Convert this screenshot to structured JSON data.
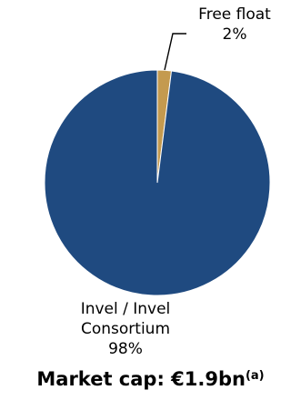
{
  "chart_data": {
    "type": "pie",
    "slices": [
      {
        "label_lines": [
          "Free float"
        ],
        "value": 2,
        "value_label": "2%",
        "color": "#c49a4f"
      },
      {
        "label_lines": [
          "Invel / Invel",
          "Consortium"
        ],
        "value": 98,
        "value_label": "98%",
        "color": "#1f4a80"
      }
    ],
    "caption": {
      "text": "Market cap: €1.9bn",
      "footnote": "(a)"
    }
  }
}
